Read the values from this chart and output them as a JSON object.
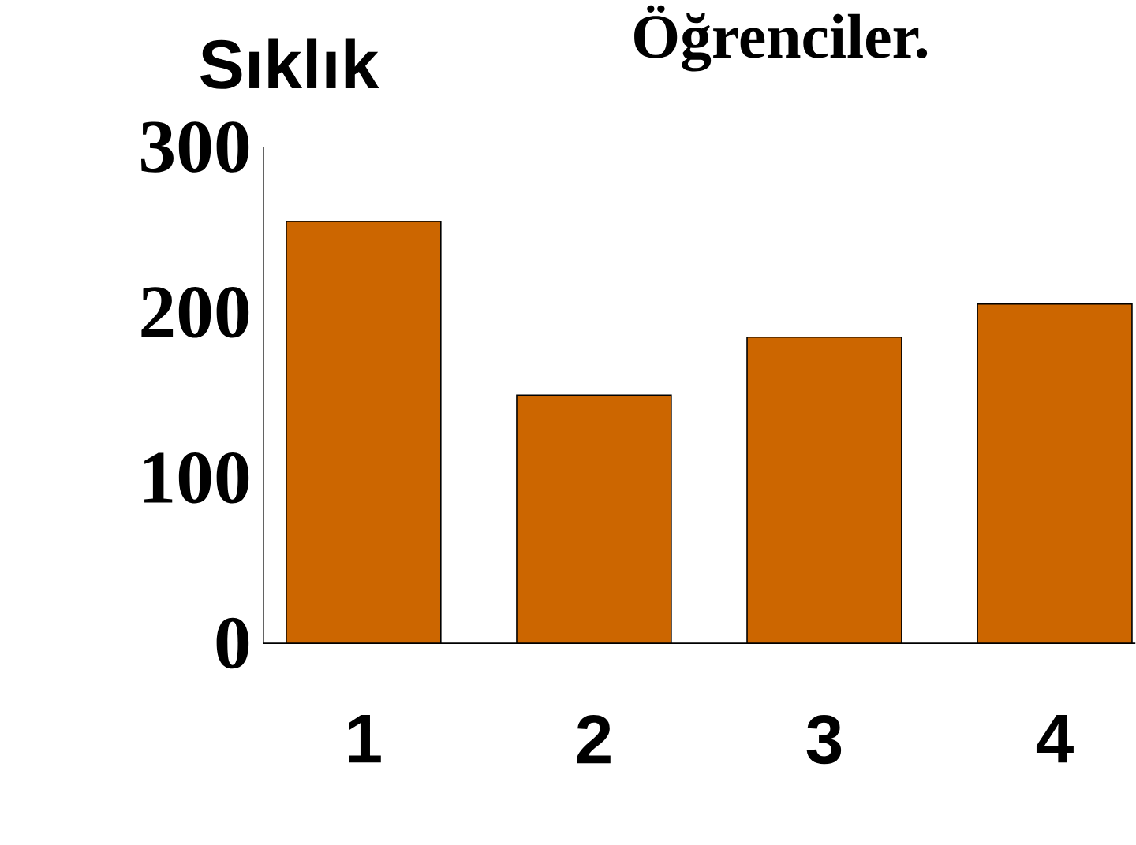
{
  "chart_data": {
    "type": "bar",
    "title": "Öğrenciler.",
    "ylabel": "Sıklık",
    "categories": [
      "1",
      "2",
      "3",
      "4"
    ],
    "values": [
      255,
      150,
      185,
      205
    ],
    "color": "#cc6600",
    "ylim": [
      0,
      300
    ],
    "yticks": [
      0,
      100,
      200,
      300
    ]
  }
}
